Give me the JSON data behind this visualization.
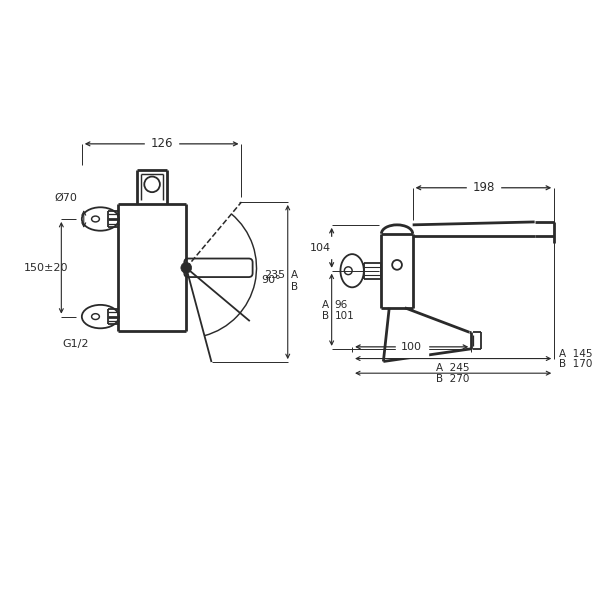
{
  "bg_color": "#ffffff",
  "line_color": "#2a2a2a",
  "lw": 1.3,
  "tlw": 2.0,
  "annotations": {
    "dim_126": "126",
    "dim_70": "Ø70",
    "dim_150": "150±20",
    "dim_g12": "G1/2",
    "dim_235": "235",
    "dim_90": "90°",
    "dim_104": "104",
    "dim_96": "96",
    "dim_101": "101",
    "dim_198": "198",
    "dim_100": "100",
    "dim_a145": "A  145",
    "dim_b170": "B  170",
    "dim_a245": "A  245",
    "dim_b270": "B  270"
  }
}
